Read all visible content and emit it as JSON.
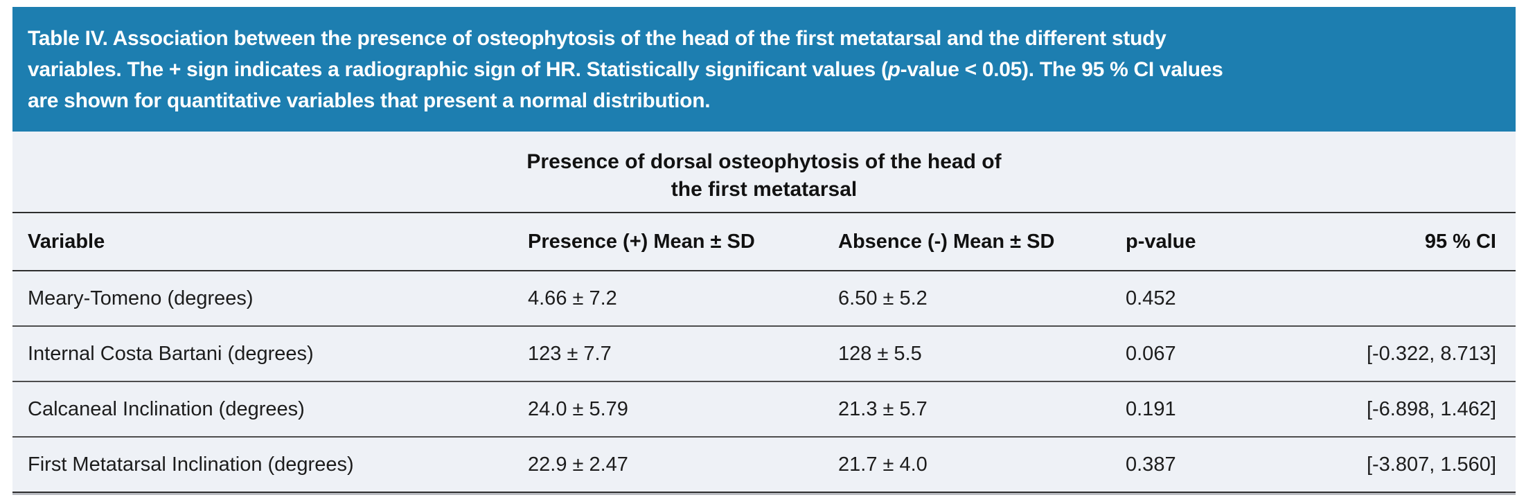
{
  "banner": {
    "bg_color": "#1d7eb0",
    "text_color": "#ffffff",
    "line1": "Table IV. Association between the presence of osteophytosis of the head of the first metatarsal and the different study",
    "line2_before_italic": "variables. The + sign indicates a radiographic sign of HR. Statistically significant values (",
    "line2_italic": "p",
    "line2_after_italic": "-value < 0.05). The 95 % CI values",
    "line3": "are shown for quantitative variables that present a normal distribution."
  },
  "table": {
    "bg_color": "#eef1f6",
    "group_header": {
      "line1": "Presence of dorsal osteophytosis of the head of",
      "line2": "the first metatarsal"
    },
    "columns": [
      "Variable",
      "Presence (+) Mean ± SD",
      "Absence (-) Mean ± SD",
      "p-value",
      "95 % CI"
    ],
    "rows": [
      {
        "variable": "Meary-Tomeno (degrees)",
        "presence": "4.66 ± 7.2",
        "absence": "6.50 ± 5.2",
        "p_value": "0.452",
        "ci_95": ""
      },
      {
        "variable": "Internal Costa Bartani (degrees)",
        "presence": "123 ± 7.7",
        "absence": "128 ± 5.5",
        "p_value": "0.067",
        "ci_95": "[-0.322, 8.713]"
      },
      {
        "variable": "Calcaneal Inclination (degrees)",
        "presence": "24.0 ± 5.79",
        "absence": "21.3 ± 5.7",
        "p_value": "0.191",
        "ci_95": "[-6.898, 1.462]"
      },
      {
        "variable": "First Metatarsal Inclination (degrees)",
        "presence": "22.9 ± 2.47",
        "absence": "21.7 ± 4.0",
        "p_value": "0.387",
        "ci_95": "[-3.807, 1.560]"
      }
    ]
  }
}
